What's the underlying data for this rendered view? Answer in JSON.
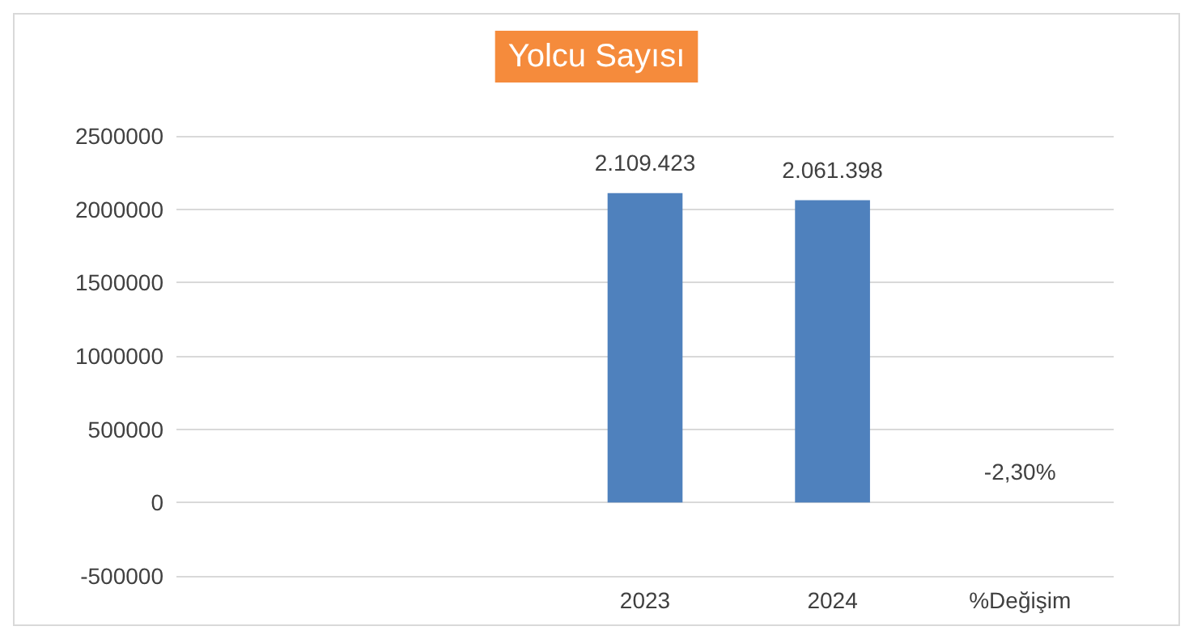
{
  "chart_data": {
    "type": "bar",
    "title": "Yolcu Sayısı",
    "categories": [
      null,
      null,
      "2023",
      "2024",
      "%Değişim"
    ],
    "values": [
      null,
      null,
      2109423,
      2061398,
      -2.3
    ],
    "value_labels": [
      null,
      null,
      "2.109.423",
      "2.061.398",
      "-2,30%"
    ],
    "color": "#4f81bd",
    "ylim": [
      -500000,
      2500000
    ],
    "yticks": [
      -500000,
      0,
      500000,
      1000000,
      1500000,
      2000000,
      2500000
    ],
    "grid": "y"
  }
}
